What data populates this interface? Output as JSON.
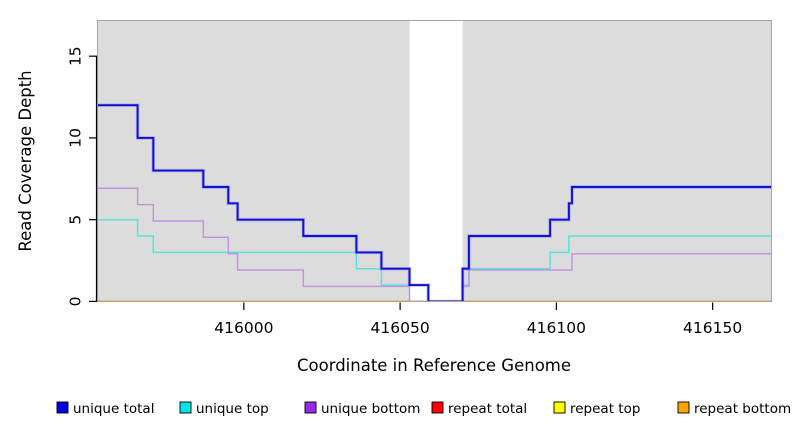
{
  "figure": {
    "background": "#ffffff"
  },
  "chart_data": {
    "type": "line",
    "step": true,
    "title": "",
    "xlabel": "Coordinate in Reference Genome",
    "ylabel": "Read Coverage Depth",
    "xlim": [
      415953,
      416169
    ],
    "ylim": [
      0,
      17.25
    ],
    "xticks": [
      416000,
      416050,
      416100,
      416150
    ],
    "yticks": [
      0,
      5,
      10,
      15
    ],
    "grid": false,
    "legend_position": "bottom",
    "panel_background": "#dcdcdc",
    "panel_border_color": "#a6a6a6",
    "axis_color": "#000000",
    "uncovered_region": {
      "x_start": 416053,
      "x_end": 416070,
      "fill": "#ffffff"
    },
    "series": [
      {
        "name": "unique total",
        "line_color": "#1010d6",
        "halo_color": "#7b7bf0",
        "swatch_color": "#0000e0",
        "line_width": 1.9,
        "points": [
          [
            415953,
            12
          ],
          [
            415966,
            10
          ],
          [
            415971,
            8
          ],
          [
            415987,
            7
          ],
          [
            415995,
            6
          ],
          [
            415998,
            5
          ],
          [
            416019,
            4
          ],
          [
            416036,
            3
          ],
          [
            416044,
            2
          ],
          [
            416053,
            1
          ],
          [
            416059,
            0
          ],
          [
            416070,
            2
          ],
          [
            416072,
            4
          ],
          [
            416098,
            5
          ],
          [
            416104,
            6
          ],
          [
            416105,
            7
          ],
          [
            416169,
            7
          ]
        ]
      },
      {
        "name": "unique top",
        "line_color": "#58e2e2",
        "swatch_color": "#00e5e5",
        "line_width": 1.5,
        "points": [
          [
            415953,
            5
          ],
          [
            415966,
            4
          ],
          [
            415971,
            3
          ],
          [
            416036,
            2
          ],
          [
            416044,
            1
          ],
          [
            416059,
            0
          ],
          [
            416070,
            1
          ],
          [
            416072,
            2
          ],
          [
            416098,
            3
          ],
          [
            416104,
            4
          ],
          [
            416169,
            4
          ]
        ]
      },
      {
        "name": "unique bottom",
        "line_color": "#c096e2",
        "swatch_color": "#9a2ae0",
        "line_width": 1.5,
        "points": [
          [
            415953,
            7
          ],
          [
            415966,
            6
          ],
          [
            415971,
            5
          ],
          [
            415987,
            4
          ],
          [
            415995,
            3
          ],
          [
            415998,
            2
          ],
          [
            416019,
            1
          ],
          [
            416053,
            0
          ],
          [
            416070,
            1
          ],
          [
            416072,
            2
          ],
          [
            416105,
            3
          ],
          [
            416169,
            3
          ]
        ]
      },
      {
        "name": "repeat total",
        "line_color": "#ff0000",
        "swatch_color": "#ff0000",
        "line_width": 1.5,
        "points": [
          [
            415953,
            0
          ],
          [
            416169,
            0
          ]
        ]
      },
      {
        "name": "repeat top",
        "line_color": "#ffff00",
        "swatch_color": "#ffff00",
        "line_width": 1.5,
        "points": [
          [
            415953,
            0
          ],
          [
            416169,
            0
          ]
        ]
      },
      {
        "name": "repeat bottom",
        "line_color": "#ffa500",
        "swatch_color": "#ffa500",
        "line_width": 1.7,
        "points": [
          [
            415953,
            0
          ],
          [
            416169,
            0
          ]
        ]
      }
    ],
    "draw_order": [
      3,
      4,
      5,
      1,
      2,
      0
    ]
  }
}
